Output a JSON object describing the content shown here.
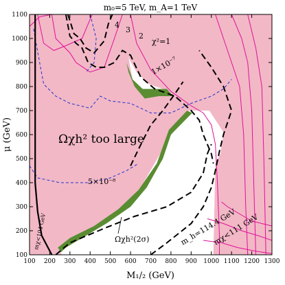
{
  "chart_data": {
    "type": "contour",
    "title": "m₀=5 TeV,  m_A=1 TeV",
    "xlabel": "M₁/₂ (GeV)",
    "ylabel": "μ (GeV)",
    "xlim": [
      100,
      1300
    ],
    "ylim": [
      100,
      1100
    ],
    "xticks": [
      100,
      200,
      300,
      400,
      500,
      600,
      700,
      800,
      900,
      1000,
      1100,
      1200,
      1300
    ],
    "yticks": [
      100,
      200,
      300,
      400,
      500,
      600,
      700,
      800,
      900,
      1000,
      1100
    ],
    "colors": {
      "excluded_fill": "#f2b8c6",
      "allowed_fill": "#ffffff",
      "relic_band": "#5a8c32",
      "chi2_contours": "#e0109a",
      "direct_detection": "#2233cc",
      "mass_bounds": "#000000",
      "frame": "#000000"
    },
    "annotations": {
      "title_text": "m₀=5 TeV, m_A=1 TeV",
      "omega_too_large": "Ωχh² too large",
      "omega_band": "Ωχh²(2σ)",
      "dd_7": "1×10⁻⁷",
      "dd_8": "5×10⁻⁸",
      "chi2_1": "χ²=1",
      "chi2_2": "2",
      "chi2_3": "3",
      "chi2_4": "4",
      "mh_bound": "m_h=114.4 GeV",
      "mchi_111": "mχ<111 GeV",
      "mchi_104": "mχ<104 GeV"
    },
    "series": [
      {
        "name": "m_h=114.4 GeV",
        "style": "dashed",
        "x": [
          220,
          300,
          470,
          620,
          780,
          900,
          960,
          980,
          1000
        ],
        "y": [
          100,
          150,
          210,
          260,
          300,
          360,
          440,
          520,
          560
        ]
      },
      {
        "name": "χ²=1",
        "style": "solid",
        "x": [
          600,
          630,
          700,
          800,
          900,
          960,
          1000,
          1020,
          1030,
          1040
        ],
        "y": [
          1100,
          980,
          870,
          780,
          720,
          690,
          640,
          560,
          400,
          180
        ]
      },
      {
        "name": "1×10⁻⁷",
        "style": "dashed",
        "x": [
          120,
          170,
          300,
          400,
          500,
          600,
          700,
          800,
          900,
          1000,
          1060
        ],
        "y": [
          1040,
          810,
          730,
          710,
          740,
          730,
          690,
          690,
          730,
          760,
          790
        ]
      },
      {
        "name": "5×10⁻⁸",
        "style": "dashed",
        "x": [
          100,
          140,
          250,
          400,
          500,
          580,
          640
        ],
        "y": [
          470,
          420,
          400,
          400,
          420,
          450,
          480
        ]
      },
      {
        "name": "mχ<104 GeV",
        "style": "solid",
        "x": [
          128,
          128,
          140,
          160,
          210
        ],
        "y": [
          1100,
          400,
          280,
          180,
          100
        ]
      }
    ]
  }
}
